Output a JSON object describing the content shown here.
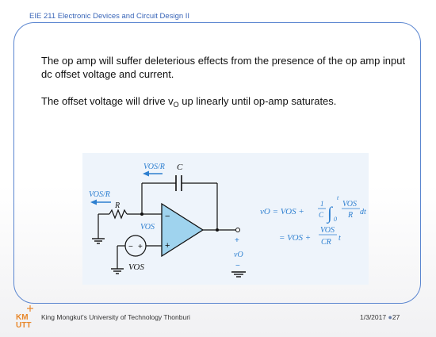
{
  "header": {
    "course": "EIE 211 Electronic Devices and Circuit Design II"
  },
  "body": {
    "paragraph1": "The op amp will suffer deleterious effects from the presence of the op amp input dc offset voltage and current.",
    "paragraph2_before": "The offset voltage will drive v",
    "paragraph2_sub": "O",
    "paragraph2_after": " up linearly until op-amp saturates."
  },
  "figure": {
    "current_top": "VOS/R",
    "capacitor_label": "C",
    "current_left": "VOS/R",
    "resistor_label": "R",
    "minus_sign": "−",
    "plus_sign": "+",
    "node_voltage": "VOS",
    "source_label": "VOS",
    "out_plus": "+",
    "out_label": "vO",
    "out_minus": "−",
    "eq_line1_lhs": "vO = VOS +",
    "eq_frac1_num": "1",
    "eq_frac1_den": "C",
    "eq_integral_upper": "t",
    "eq_integral_lower": "0",
    "eq_frac2_num": "VOS",
    "eq_frac2_den": "R",
    "eq_dt": "dt",
    "eq_line2_lhs": "= VOS +",
    "eq_frac3_num": "VOS",
    "eq_frac3_den": "CR",
    "eq_t": "t"
  },
  "footer": {
    "logo_text": "KMUTT",
    "university": "King Mongkut's University of Technology Thonburi",
    "date": "1/3/2017",
    "page": "27"
  },
  "colors": {
    "accent": "#3a66b8",
    "frame": "#5b86d0",
    "figure_blue": "#2d7fd0",
    "opamp_fill": "#9fd3ee",
    "logo_orange": "#e8872a"
  }
}
